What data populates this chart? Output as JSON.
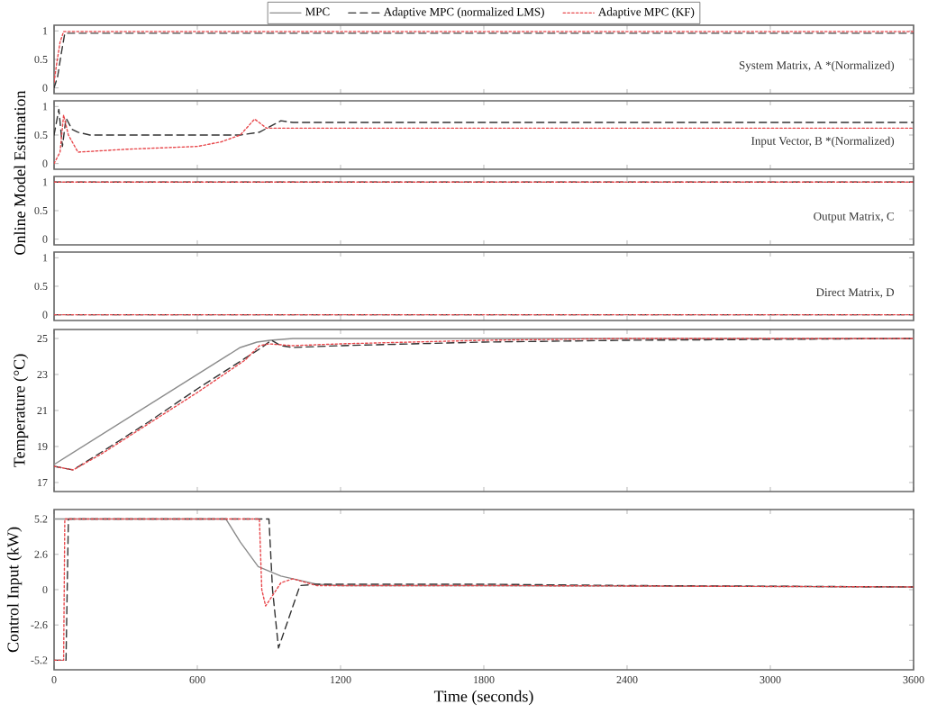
{
  "chart_data": [
    {
      "type": "line",
      "xlim": [
        0,
        3600
      ],
      "xticks": [
        0,
        600,
        1200,
        1800,
        2400,
        3000,
        3600
      ],
      "ylim": [
        -0.1,
        1.1
      ],
      "yticks": [
        0,
        0.5,
        1
      ],
      "tick_labels": "y",
      "annotations": [
        "System Matrix, A *(Normalized)"
      ],
      "series": [
        {
          "color": "#333333",
          "line_style": "dashed",
          "x": [
            0,
            15,
            30,
            45,
            3600
          ],
          "values": [
            0,
            0.2,
            0.6,
            0.96,
            0.96
          ]
        },
        {
          "color": "#e8494d",
          "line_style": "dotted",
          "x": [
            0,
            10,
            25,
            40,
            3600
          ],
          "values": [
            0.1,
            0.4,
            0.8,
            0.99,
            0.99
          ]
        }
      ]
    },
    {
      "type": "line",
      "xlim": [
        0,
        3600
      ],
      "xticks": [
        0,
        600,
        1200,
        1800,
        2400,
        3000,
        3600
      ],
      "ylim": [
        -0.1,
        1.1
      ],
      "yticks": [
        0,
        0.5,
        1
      ],
      "tick_labels": "y",
      "ylabel": "Online Model Estimation",
      "annotations": [
        "Input Vector, B *(Normalized)"
      ],
      "series": [
        {
          "color": "#333333",
          "line_style": "dashed",
          "x": [
            0,
            20,
            35,
            50,
            75,
            100,
            150,
            780,
            860,
            950,
            1000,
            3600
          ],
          "values": [
            0.5,
            0.95,
            0.3,
            0.8,
            0.6,
            0.55,
            0.5,
            0.5,
            0.55,
            0.75,
            0.72,
            0.72
          ]
        },
        {
          "color": "#e8494d",
          "line_style": "dotted",
          "x": [
            0,
            25,
            40,
            60,
            100,
            300,
            600,
            700,
            780,
            840,
            890,
            3600
          ],
          "values": [
            0,
            0.2,
            0.85,
            0.5,
            0.2,
            0.25,
            0.3,
            0.38,
            0.5,
            0.78,
            0.62,
            0.62
          ]
        }
      ]
    },
    {
      "type": "line",
      "xlim": [
        0,
        3600
      ],
      "xticks": [
        0,
        600,
        1200,
        1800,
        2400,
        3000,
        3600
      ],
      "ylim": [
        -0.1,
        1.1
      ],
      "yticks": [
        0,
        0.5,
        1
      ],
      "tick_labels": "y",
      "annotations": [
        "Output Matrix, C"
      ],
      "series": [
        {
          "color": "#333333",
          "line_style": "dashed",
          "x": [
            0,
            3600
          ],
          "values": [
            1,
            1
          ]
        },
        {
          "color": "#e8494d",
          "line_style": "dotted",
          "x": [
            0,
            3600
          ],
          "values": [
            1,
            1
          ]
        }
      ]
    },
    {
      "type": "line",
      "xlim": [
        0,
        3600
      ],
      "xticks": [
        0,
        600,
        1200,
        1800,
        2400,
        3000,
        3600
      ],
      "ylim": [
        -0.1,
        1.1
      ],
      "yticks": [
        0,
        0.5,
        1
      ],
      "tick_labels": "y",
      "annotations": [
        "Direct Matrix, D"
      ],
      "series": [
        {
          "color": "#333333",
          "line_style": "dashed",
          "x": [
            0,
            3600
          ],
          "values": [
            0,
            0
          ]
        },
        {
          "color": "#e8494d",
          "line_style": "dotted",
          "x": [
            0,
            3600
          ],
          "values": [
            0,
            0
          ]
        }
      ]
    },
    {
      "type": "line",
      "xlim": [
        0,
        3600
      ],
      "xticks": [
        0,
        600,
        1200,
        1800,
        2400,
        3000,
        3600
      ],
      "ylim": [
        16.5,
        25.5
      ],
      "yticks": [
        17,
        19,
        21,
        23,
        25
      ],
      "tick_labels": "y",
      "ylabel": "Temperature (°C)",
      "legend": "top",
      "series": [
        {
          "name": "MPC",
          "color": "#8c8c8c",
          "line_style": "solid",
          "x": [
            0,
            780,
            850,
            905,
            1000,
            3600
          ],
          "values": [
            18,
            24.5,
            24.8,
            24.9,
            25,
            25
          ]
        },
        {
          "name": "Adaptive MPC (normalized LMS)",
          "color": "#333333",
          "line_style": "dashed",
          "x": [
            0,
            80,
            200,
            400,
            600,
            800,
            870,
            910,
            950,
            1000,
            1200,
            1800,
            2400,
            3600
          ],
          "values": [
            17.9,
            17.7,
            18.7,
            20.4,
            22.2,
            23.9,
            24.5,
            24.9,
            24.6,
            24.5,
            24.6,
            24.8,
            24.9,
            25
          ]
        },
        {
          "name": "Adaptive MPC (KF)",
          "color": "#e8494d",
          "line_style": "dotted",
          "x": [
            0,
            80,
            200,
            400,
            600,
            800,
            860,
            900,
            1000,
            1200,
            1800,
            2400,
            3600
          ],
          "values": [
            17.9,
            17.7,
            18.6,
            20.3,
            22.0,
            23.8,
            24.6,
            24.7,
            24.6,
            24.7,
            24.9,
            25,
            25
          ]
        }
      ]
    },
    {
      "type": "line",
      "xlim": [
        0,
        3600
      ],
      "xticks": [
        0,
        600,
        1200,
        1800,
        2400,
        3000,
        3600
      ],
      "ylim": [
        -5.9,
        5.9
      ],
      "yticks": [
        5.2,
        2.6,
        0,
        -2.6,
        -5.2
      ],
      "ylabel": "Control Input (kW)",
      "xlabel": "Time (seconds)",
      "series": [
        {
          "color": "#8c8c8c",
          "line_style": "solid",
          "x": [
            0,
            720,
            780,
            855,
            950,
            1000,
            1100,
            1200,
            1800,
            3600
          ],
          "values": [
            5.2,
            5.2,
            3.5,
            1.7,
            1.0,
            0.8,
            0.4,
            0.3,
            0.3,
            0.2
          ]
        },
        {
          "color": "#333333",
          "line_style": "dashed",
          "x": [
            0,
            50,
            60,
            900,
            915,
            940,
            1030,
            1100,
            1800,
            2400,
            3600
          ],
          "values": [
            -5.2,
            -5.2,
            5.2,
            5.2,
            0,
            -4.3,
            0.3,
            0.4,
            0.4,
            0.3,
            0.2
          ]
        },
        {
          "color": "#e8494d",
          "line_style": "dotted",
          "x": [
            0,
            40,
            45,
            860,
            870,
            886,
            950,
            1000,
            1100,
            1800,
            3600
          ],
          "values": [
            -5.2,
            -5.2,
            5.2,
            5.2,
            0,
            -1.2,
            0.5,
            0.8,
            0.3,
            0.3,
            0.2
          ]
        }
      ]
    }
  ]
}
